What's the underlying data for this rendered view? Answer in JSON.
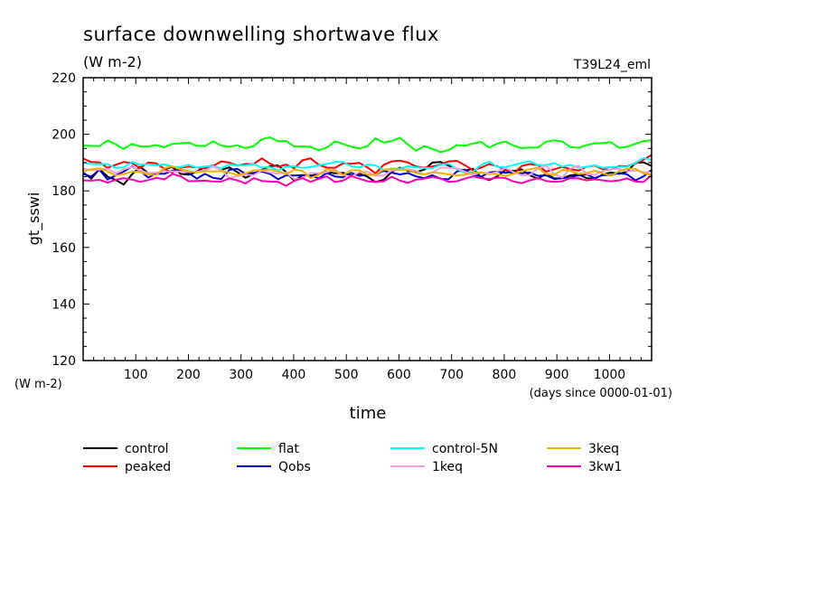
{
  "chart_data": {
    "type": "line",
    "title": "surface downwelling shortwave flux",
    "subtitle": "(W m-2)",
    "run_label": "T39L24_eml",
    "xlabel": "time",
    "xunit": "(days since 0000-01-01)",
    "ylabel": "gt_sswi",
    "yunit": "(W m-2)",
    "xlim": [
      0,
      1080
    ],
    "ylim": [
      120,
      220
    ],
    "xticks": [
      100,
      200,
      300,
      400,
      500,
      600,
      700,
      800,
      900,
      1000
    ],
    "yticks": [
      120,
      140,
      160,
      180,
      200,
      220
    ],
    "grid": false,
    "legend": "bottom",
    "series": [
      {
        "name": "control",
        "color": "#000000",
        "values": [
          186.5,
          184.3,
          187.7,
          185.0,
          183.9,
          182.2,
          185.8,
          188.5,
          186.3,
          185.7,
          187.8,
          188.4,
          186.0,
          185.7,
          186.8,
          188.5,
          188.9,
          187.4,
          188.3,
          186.6,
          184.6,
          186.0,
          187.4,
          188.7,
          189.0,
          186.6,
          183.6,
          185.5,
          185.3,
          186.0,
          186.7,
          186.2,
          186.4,
          185.4,
          186.1,
          185.0,
          183.1,
          183.9,
          186.7,
          188.2,
          187.1,
          186.6,
          187.5,
          190.0,
          190.2,
          188.9,
          187.8,
          187.2,
          187.8,
          184.9,
          183.8,
          185.1,
          187.4,
          187.0,
          187.6,
          185.5,
          184.3,
          186.0,
          184.4,
          184.4,
          185.5,
          185.8,
          184.5,
          184.3,
          185.8,
          186.5,
          186.0,
          186.8,
          189.9,
          190.1,
          188.8
        ]
      },
      {
        "name": "peaked",
        "color": "#ff0000",
        "values": [
          191.4,
          190.2,
          190.1,
          188.1,
          189.2,
          190.2,
          189.8,
          188.1,
          190.0,
          189.7,
          187.8,
          186.4,
          188.2,
          188.6,
          188.2,
          188.0,
          188.8,
          190.4,
          190.0,
          188.9,
          189.5,
          189.5,
          191.5,
          189.6,
          188.5,
          189.3,
          188.0,
          190.8,
          191.5,
          189.2,
          188.2,
          188.1,
          189.7,
          189.6,
          189.9,
          188.3,
          186.2,
          189.2,
          190.4,
          190.7,
          190.0,
          188.6,
          188.2,
          188.6,
          189.3,
          190.4,
          190.6,
          189.1,
          187.3,
          188.2,
          189.5,
          188.7,
          187.3,
          186.0,
          188.8,
          189.5,
          189.1,
          186.8,
          187.6,
          188.5,
          187.7,
          187.2,
          188.5,
          188.9,
          187.6,
          187.5,
          188.8,
          188.7,
          189.6,
          191.0,
          192.7
        ]
      },
      {
        "name": "flat",
        "color": "#00ff00",
        "values": [
          196.0,
          195.9,
          195.8,
          197.8,
          196.5,
          194.8,
          196.6,
          195.7,
          195.7,
          196.2,
          195.4,
          196.6,
          196.8,
          197.1,
          195.9,
          195.8,
          197.5,
          196.0,
          195.6,
          196.1,
          195.1,
          195.8,
          198.2,
          198.9,
          197.5,
          197.6,
          195.7,
          195.7,
          195.6,
          194.3,
          195.3,
          197.5,
          196.6,
          195.6,
          195.0,
          195.8,
          198.6,
          197.1,
          197.6,
          198.8,
          196.4,
          194.2,
          195.8,
          194.9,
          193.7,
          194.4,
          196.2,
          195.9,
          196.7,
          197.3,
          195.3,
          196.7,
          197.4,
          196.0,
          195.1,
          195.3,
          195.3,
          197.4,
          197.9,
          197.4,
          195.5,
          195.2,
          196.2,
          196.8,
          196.9,
          197.2,
          195.2,
          195.6,
          196.6,
          197.6,
          197.9
        ]
      },
      {
        "name": "Qobs",
        "color": "#0000cc",
        "values": [
          186.0,
          185.0,
          187.5,
          184.0,
          185.4,
          186.8,
          188.6,
          187.1,
          184.7,
          186.1,
          186.0,
          187.2,
          187.1,
          186.3,
          184.3,
          186.0,
          184.6,
          184.2,
          187.4,
          187.8,
          186.0,
          186.4,
          186.8,
          186.0,
          184.1,
          185.5,
          185.4,
          185.6,
          185.5,
          184.4,
          186.3,
          185.1,
          184.8,
          186.4,
          185.3,
          185.7,
          185.7,
          187.1,
          186.4,
          185.8,
          186.3,
          185.1,
          184.5,
          185.5,
          184.3,
          184.1,
          186.8,
          187.5,
          185.7,
          185.0,
          186.5,
          186.8,
          186.4,
          186.7,
          186.2,
          186.5,
          185.3,
          185.5,
          184.2,
          184.5,
          184.8,
          185.5,
          185.8,
          184.5,
          185.6,
          185.6,
          186.3,
          185.8,
          183.7,
          185.1,
          187.4
        ]
      },
      {
        "name": "control-5N",
        "color": "#00ffff",
        "values": [
          190.0,
          189.5,
          189.4,
          189.5,
          188.1,
          188.3,
          190.2,
          189.2,
          189.4,
          188.9,
          189.4,
          188.5,
          188.4,
          189.2,
          188.2,
          188.6,
          188.8,
          187.9,
          189.4,
          188.9,
          189.0,
          189.5,
          188.2,
          188.4,
          187.3,
          188.5,
          188.7,
          188.1,
          188.4,
          189.0,
          189.5,
          190.2,
          190.2,
          188.7,
          188.3,
          189.3,
          189.0,
          187.4,
          187.9,
          187.8,
          188.7,
          188.3,
          188.1,
          188.0,
          189.2,
          189.6,
          187.8,
          186.4,
          186.7,
          189.2,
          190.3,
          188.5,
          188.4,
          189.1,
          189.9,
          190.5,
          189.1,
          189.1,
          189.8,
          188.6,
          189.2,
          188.2,
          188.5,
          189.0,
          188.1,
          188.4,
          188.5,
          188.5,
          189.8,
          191.6,
          191.0
        ]
      },
      {
        "name": "1keq",
        "color": "#f0a0e0",
        "values": [
          187.8,
          187.3,
          187.5,
          187.8,
          186.2,
          187.6,
          188.4,
          187.3,
          186.3,
          186.5,
          186.9,
          186.9,
          186.8,
          186.7,
          186.7,
          187.3,
          188.6,
          187.4,
          184.5,
          185.2,
          185.7,
          185.6,
          187.2,
          186.5,
          186.1,
          186.5,
          184.2,
          184.3,
          186.3,
          186.2,
          186.6,
          187.6,
          185.6,
          185.0,
          186.6,
          186.8,
          185.3,
          185.5,
          187.2,
          187.4,
          187.6,
          187.1,
          185.8,
          186.4,
          188.2,
          188.1,
          188.0,
          186.8,
          185.7,
          186.6,
          185.8,
          186.8,
          188.1,
          186.6,
          185.5,
          185.6,
          187.9,
          188.9,
          185.9,
          184.7,
          187.9,
          188.9,
          185.9,
          185.7,
          187.0,
          187.6,
          187.8,
          186.9,
          187.2,
          186.6,
          186.5
        ]
      },
      {
        "name": "3keq",
        "color": "#f0b000",
        "values": [
          187.0,
          187.6,
          188.0,
          186.9,
          185.4,
          185.9,
          186.8,
          186.6,
          185.8,
          185.6,
          188.0,
          188.7,
          187.6,
          187.0,
          186.5,
          187.0,
          186.8,
          187.0,
          186.5,
          185.6,
          186.2,
          187.3,
          187.3,
          187.5,
          186.9,
          185.9,
          187.5,
          187.1,
          184.6,
          185.6,
          187.7,
          187.0,
          185.6,
          187.3,
          187.3,
          185.7,
          185.7,
          187.5,
          187.7,
          187.5,
          187.4,
          186.3,
          185.8,
          186.5,
          186.3,
          185.8,
          185.5,
          185.7,
          186.5,
          186.4,
          186.2,
          185.8,
          185.3,
          186.0,
          187.0,
          187.6,
          188.1,
          186.0,
          185.6,
          187.4,
          187.1,
          186.0,
          186.2,
          187.1,
          186.2,
          185.3,
          187.0,
          187.8,
          187.8,
          186.2,
          185.7
        ]
      },
      {
        "name": "3kw1",
        "color": "#ff00b0",
        "values": [
          183.7,
          183.6,
          183.9,
          182.9,
          183.9,
          184.5,
          184.0,
          183.2,
          183.8,
          184.6,
          184.1,
          185.9,
          185.2,
          183.4,
          183.5,
          183.6,
          183.3,
          183.3,
          184.4,
          183.7,
          182.6,
          184.5,
          183.5,
          183.3,
          183.2,
          181.8,
          183.5,
          184.5,
          183.2,
          184.2,
          185.1,
          183.1,
          183.6,
          185.2,
          184.3,
          183.4,
          183.2,
          183.4,
          185.0,
          183.6,
          182.8,
          184.0,
          184.3,
          184.9,
          184.4,
          183.2,
          183.4,
          184.3,
          185.1,
          184.5,
          184.2,
          184.7,
          184.5,
          183.3,
          182.7,
          183.7,
          184.5,
          183.5,
          183.2,
          183.4,
          184.5,
          184.4,
          183.7,
          184.1,
          183.7,
          183.4,
          183.7,
          184.4,
          183.3,
          183.1,
          185.6
        ]
      }
    ]
  }
}
